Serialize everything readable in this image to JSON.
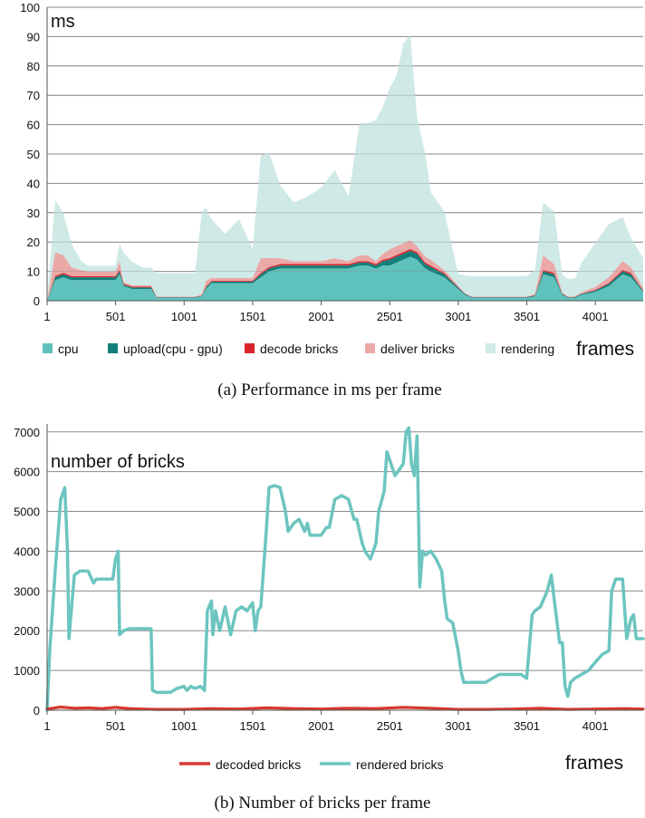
{
  "colors": {
    "cpu": "#5fc1bb",
    "upload": "#127f7a",
    "decode": "#d9242b",
    "deliver": "#eaa8a7",
    "rendering": "#cfe9e6",
    "decoded_line": "#d73a2f",
    "rendered_line": "#6cc5bf",
    "grid": "#8a8a8a"
  },
  "chart_data": [
    {
      "type": "area",
      "stacked": true,
      "unit_label": "ms",
      "xlabel": "frames",
      "caption": "(a)  Performance in ms per frame",
      "xlim": [
        1,
        4350
      ],
      "ylim": [
        0,
        100
      ],
      "x_ticks": [
        "1",
        "501",
        "1001",
        "1501",
        "2001",
        "2501",
        "3001",
        "3501",
        "4001"
      ],
      "x_tick_values": [
        1,
        501,
        1001,
        1501,
        2001,
        2501,
        3001,
        3501,
        4001
      ],
      "y_ticks": [
        "0",
        "10",
        "20",
        "30",
        "40",
        "50",
        "60",
        "70",
        "80",
        "90",
        "100"
      ],
      "y_tick_values": [
        0,
        10,
        20,
        30,
        40,
        50,
        60,
        70,
        80,
        90,
        100
      ],
      "grid": true,
      "legend_position": "bottom",
      "x": [
        1,
        60,
        120,
        180,
        250,
        300,
        360,
        430,
        500,
        530,
        560,
        620,
        700,
        760,
        800,
        900,
        1000,
        1080,
        1130,
        1160,
        1200,
        1300,
        1400,
        1500,
        1560,
        1620,
        1700,
        1800,
        1900,
        2000,
        2100,
        2200,
        2280,
        2340,
        2400,
        2450,
        2500,
        2550,
        2600,
        2650,
        2700,
        2760,
        2800,
        2900,
        3000,
        3050,
        3100,
        3200,
        3400,
        3500,
        3560,
        3620,
        3700,
        3760,
        3800,
        3850,
        3900,
        4000,
        4100,
        4200,
        4260,
        4350
      ],
      "series": [
        {
          "name": "cpu",
          "values": [
            0,
            7,
            8,
            7,
            7,
            7,
            7,
            7,
            7,
            9,
            5,
            4,
            4,
            4,
            1,
            1,
            1,
            1,
            1.5,
            4,
            6,
            6,
            6,
            6,
            8,
            10,
            11,
            11,
            11,
            11,
            11,
            11,
            12,
            12,
            11,
            12,
            12,
            13,
            14,
            15,
            14,
            11,
            10,
            8,
            4,
            2,
            1,
            1,
            1,
            1,
            1.5,
            9,
            8,
            2,
            1,
            1,
            2,
            3,
            5,
            9,
            8,
            3
          ]
        },
        {
          "name": "upload(cpu - gpu)",
          "values": [
            0,
            1,
            1,
            1,
            1,
            1,
            1,
            1,
            1,
            1,
            0.5,
            0.5,
            0.5,
            0.5,
            0.2,
            0.2,
            0.2,
            0.2,
            0.2,
            0.5,
            0.5,
            0.5,
            0.5,
            0.5,
            1,
            1,
            1,
            1,
            1,
            1,
            1,
            1,
            1,
            1,
            1,
            1.5,
            2,
            2,
            2,
            2,
            2,
            1.5,
            1.5,
            1,
            0.5,
            0.3,
            0.2,
            0.2,
            0.2,
            0.2,
            0.3,
            1,
            1,
            0.3,
            0.2,
            0.2,
            0.3,
            0.5,
            0.8,
            1,
            1,
            0.3
          ]
        },
        {
          "name": "decode bricks",
          "values": [
            0,
            0.5,
            0.5,
            0.4,
            0.4,
            0.4,
            0.4,
            0.4,
            0.4,
            0.5,
            0.3,
            0.3,
            0.3,
            0.3,
            0.1,
            0.1,
            0.1,
            0.1,
            0.1,
            0.3,
            0.3,
            0.3,
            0.3,
            0.3,
            0.5,
            0.5,
            0.5,
            0.5,
            0.5,
            0.5,
            0.5,
            0.5,
            0.5,
            0.5,
            0.5,
            0.5,
            0.5,
            0.6,
            0.6,
            0.6,
            0.6,
            0.5,
            0.5,
            0.4,
            0.2,
            0.1,
            0.1,
            0.1,
            0.1,
            0.1,
            0.1,
            0.5,
            0.5,
            0.1,
            0.1,
            0.1,
            0.1,
            0.2,
            0.3,
            0.5,
            0.5,
            0.2
          ]
        },
        {
          "name": "deliver bricks",
          "values": [
            0,
            8,
            6,
            3,
            2,
            1.5,
            1.5,
            1.5,
            1.5,
            3,
            0.5,
            0.5,
            0.5,
            0.5,
            0.1,
            0.1,
            0.1,
            0.1,
            0.5,
            2,
            1,
            1,
            1,
            1,
            5,
            3,
            2,
            1,
            1,
            1,
            2,
            1,
            2,
            2,
            1,
            2,
            3,
            3,
            3,
            3,
            2,
            2,
            2,
            1,
            0.5,
            0.2,
            0.1,
            0.1,
            0.1,
            0.1,
            0.5,
            5,
            3,
            0.5,
            0.2,
            0.2,
            0.5,
            1,
            2,
            3,
            2,
            1
          ]
        },
        {
          "name": "rendering",
          "values": [
            0,
            18,
            14,
            8,
            3,
            2,
            2,
            2,
            2,
            6,
            10,
            8,
            6,
            6,
            8,
            8,
            8,
            8,
            28,
            25,
            20,
            15,
            20,
            10,
            35,
            36,
            25,
            20,
            22,
            25,
            30,
            22,
            45,
            45,
            48,
            50,
            55,
            58,
            68,
            70,
            44,
            35,
            23,
            20,
            4,
            6,
            7,
            7,
            7,
            7,
            8,
            18,
            18,
            6,
            6,
            6,
            10,
            15,
            18,
            15,
            10,
            10
          ]
        }
      ]
    },
    {
      "type": "line",
      "unit_label": "number of bricks",
      "xlabel": "frames",
      "caption": "(b)  Number of bricks per frame",
      "xlim": [
        1,
        4350
      ],
      "ylim": [
        0,
        7200
      ],
      "x_ticks": [
        "1",
        "501",
        "1001",
        "1501",
        "2001",
        "2501",
        "3001",
        "3501",
        "4001"
      ],
      "x_tick_values": [
        1,
        501,
        1001,
        1501,
        2001,
        2501,
        3001,
        3501,
        4001
      ],
      "y_ticks": [
        "0",
        "1000",
        "2000",
        "3000",
        "4000",
        "5000",
        "6000",
        "7000"
      ],
      "y_tick_values": [
        0,
        1000,
        2000,
        3000,
        4000,
        5000,
        6000,
        7000
      ],
      "grid": true,
      "legend_position": "bottom",
      "series": [
        {
          "name": "decoded bricks",
          "x": [
            1,
            100,
            200,
            300,
            400,
            500,
            600,
            700,
            800,
            1000,
            1200,
            1400,
            1600,
            1800,
            2000,
            2200,
            2400,
            2600,
            2800,
            3000,
            3200,
            3400,
            3600,
            3800,
            4000,
            4200,
            4350
          ],
          "values": [
            30,
            80,
            50,
            60,
            40,
            70,
            40,
            30,
            20,
            20,
            40,
            30,
            60,
            40,
            30,
            50,
            40,
            70,
            50,
            20,
            20,
            30,
            50,
            20,
            30,
            40,
            30
          ]
        },
        {
          "name": "rendered bricks",
          "x": [
            1,
            20,
            60,
            100,
            130,
            150,
            160,
            180,
            200,
            240,
            300,
            340,
            360,
            400,
            480,
            500,
            520,
            530,
            560,
            600,
            640,
            700,
            760,
            770,
            800,
            850,
            900,
            950,
            1000,
            1020,
            1050,
            1080,
            1120,
            1150,
            1170,
            1200,
            1210,
            1230,
            1260,
            1300,
            1340,
            1380,
            1420,
            1460,
            1500,
            1520,
            1540,
            1560,
            1600,
            1620,
            1660,
            1700,
            1740,
            1760,
            1800,
            1840,
            1880,
            1900,
            1920,
            2000,
            2040,
            2060,
            2100,
            2150,
            2200,
            2240,
            2260,
            2300,
            2320,
            2360,
            2400,
            2420,
            2460,
            2480,
            2500,
            2540,
            2560,
            2600,
            2620,
            2640,
            2660,
            2680,
            2700,
            2720,
            2740,
            2760,
            2800,
            2840,
            2880,
            2900,
            2920,
            2960,
            3000,
            3020,
            3040,
            3060,
            3100,
            3200,
            3300,
            3400,
            3460,
            3500,
            3540,
            3560,
            3600,
            3650,
            3680,
            3700,
            3740,
            3760,
            3780,
            3800,
            3820,
            3850,
            3900,
            3950,
            4000,
            4050,
            4100,
            4120,
            4150,
            4200,
            4230,
            4260,
            4280,
            4300,
            4320,
            4350
          ],
          "values": [
            0,
            1500,
            3500,
            5300,
            5600,
            4000,
            1800,
            2600,
            3400,
            3500,
            3500,
            3200,
            3300,
            3300,
            3300,
            3800,
            4000,
            1900,
            2000,
            2050,
            2050,
            2050,
            2050,
            500,
            450,
            450,
            450,
            550,
            600,
            500,
            600,
            550,
            600,
            500,
            2500,
            2750,
            1900,
            2500,
            2000,
            2600,
            1900,
            2500,
            2600,
            2500,
            2700,
            2000,
            2500,
            2600,
            4500,
            5600,
            5650,
            5600,
            5000,
            4500,
            4700,
            4800,
            4500,
            4700,
            4400,
            4400,
            4600,
            4600,
            5300,
            5400,
            5300,
            4800,
            4800,
            4200,
            4000,
            3800,
            4200,
            5000,
            5500,
            6500,
            6300,
            5900,
            6000,
            6200,
            7000,
            7100,
            6200,
            5900,
            6900,
            3100,
            4000,
            3900,
            4000,
            3800,
            3500,
            2800,
            2300,
            2200,
            1500,
            1000,
            700,
            700,
            700,
            700,
            900,
            900,
            900,
            800,
            2400,
            2500,
            2600,
            3000,
            3400,
            2800,
            1700,
            1700,
            600,
            350,
            700,
            800,
            900,
            1000,
            1200,
            1400,
            1500,
            3000,
            3300,
            3300,
            1800,
            2300,
            2400,
            1800,
            1800,
            1800
          ]
        }
      ]
    }
  ]
}
